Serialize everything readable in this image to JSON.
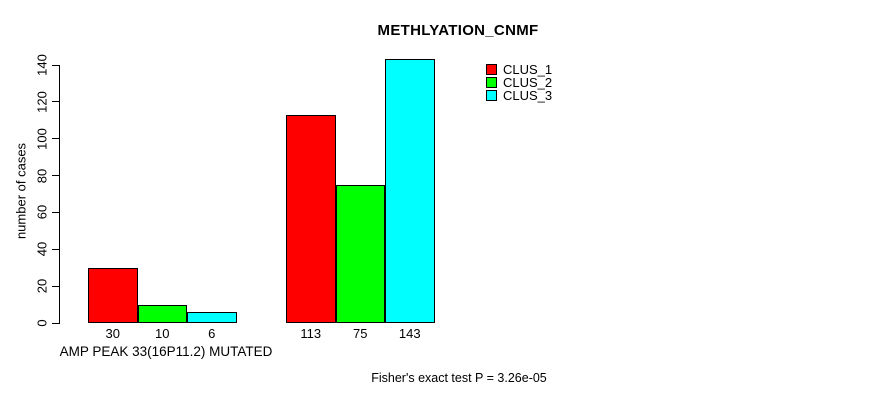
{
  "page": {
    "background": "#FFFFFF",
    "text_color": "#000000"
  },
  "chart_data": {
    "type": "bar",
    "title": "METHLYATION_CNMF",
    "ylabel": "number of cases",
    "xlabel": "AMP PEAK 33(16P11.2) MUTATED",
    "footnote": "Fisher's exact test P = 3.26e-05",
    "ylim": [
      0,
      140
    ],
    "yticks": [
      0,
      20,
      40,
      60,
      80,
      100,
      120,
      140
    ],
    "grid": false,
    "legend_position": "top-right",
    "categories": [
      "",
      ""
    ],
    "series": [
      {
        "name": "CLUS_1",
        "color": "#FF0000",
        "values": [
          30,
          113
        ]
      },
      {
        "name": "CLUS_2",
        "color": "#00FF00",
        "values": [
          10,
          75
        ]
      },
      {
        "name": "CLUS_3",
        "color": "#00FFFF",
        "values": [
          6,
          143
        ]
      }
    ],
    "bar_value_labels": [
      [
        "30",
        "10",
        "6"
      ],
      [
        "113",
        "75",
        "143"
      ]
    ]
  }
}
